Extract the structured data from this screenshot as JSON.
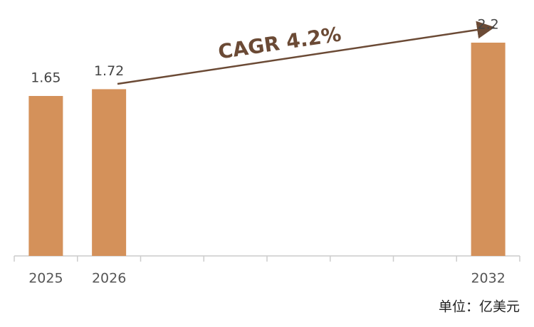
{
  "chart_data": {
    "type": "bar",
    "categories": [
      "2025",
      "2026",
      null,
      null,
      null,
      null,
      null,
      "2032"
    ],
    "values": [
      1.65,
      1.72,
      null,
      null,
      null,
      null,
      null,
      2.2
    ],
    "color": "#d4915a",
    "ylim": [
      0,
      2.2
    ],
    "annotation": "CAGR 4.2%",
    "unit_note": "单位：亿美元"
  }
}
